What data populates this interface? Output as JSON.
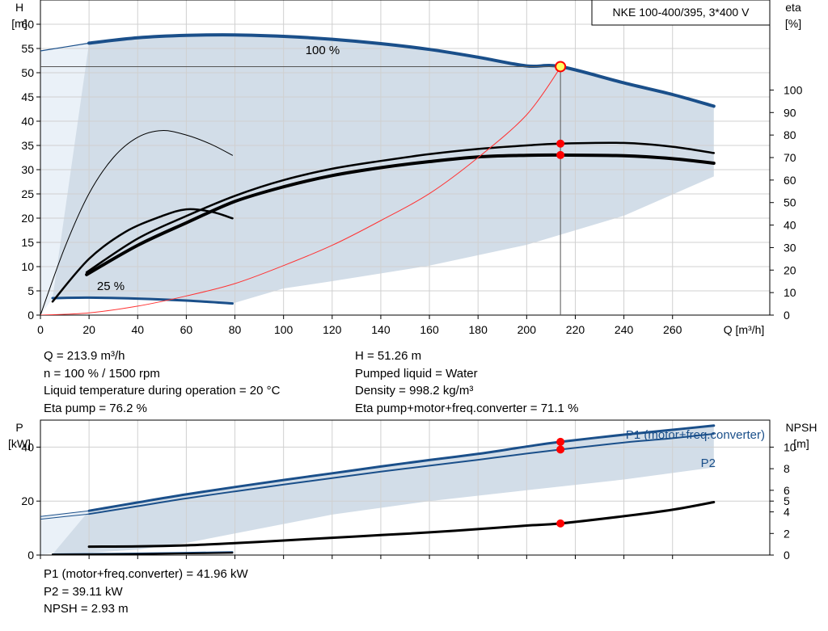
{
  "chart_data": [
    {
      "type": "line",
      "title": "NKE 100-400/395, 3*400 V",
      "xlabel": "Q [m³/h]",
      "ylabel": [
        "H",
        "[m]"
      ],
      "y2label": [
        "eta",
        "[%]"
      ],
      "xlim": [
        0,
        300
      ],
      "ylim": [
        0,
        65
      ],
      "y2lim": [
        0,
        140
      ],
      "x_ticks": [
        0,
        20,
        40,
        60,
        80,
        100,
        120,
        140,
        160,
        180,
        200,
        220,
        240,
        260
      ],
      "y_ticks": [
        0,
        5,
        10,
        15,
        20,
        25,
        30,
        35,
        40,
        45,
        50,
        55,
        60
      ],
      "y2_ticks": [
        0,
        10,
        20,
        30,
        40,
        50,
        60,
        70,
        80,
        90,
        100
      ],
      "grid": true,
      "curve_labels": [
        "100 %",
        "25 %"
      ],
      "operating_point": {
        "Q": 213.9,
        "H": 51.26
      },
      "series": [
        {
          "name": "100 %",
          "axis": "y",
          "color": "#1a4f8a",
          "width": 4,
          "x": [
            20,
            40,
            60,
            80,
            100,
            120,
            140,
            160,
            180,
            200,
            213.9,
            240,
            260,
            277
          ],
          "y": [
            56.1,
            57.2,
            57.7,
            57.8,
            57.5,
            56.9,
            56.0,
            54.8,
            53.2,
            51.4,
            51.26,
            47.9,
            45.5,
            43.1
          ]
        },
        {
          "name": "25 %",
          "axis": "y",
          "color": "#1a4f8a",
          "width": 3,
          "x": [
            5,
            20,
            40,
            60,
            79
          ],
          "y": [
            3.5,
            3.6,
            3.4,
            3.0,
            2.4
          ]
        },
        {
          "axis": "y",
          "color": "#1a4f8a",
          "width": 1.2,
          "x": [
            0,
            20
          ],
          "y": [
            54.5,
            56.1
          ]
        },
        {
          "axis": "y2",
          "color": "#000000",
          "width": 2.5,
          "x": [
            19,
            40,
            60,
            80,
            100,
            120,
            140,
            160,
            180,
            200,
            213.9,
            240,
            260,
            277
          ],
          "y": [
            19,
            34,
            44,
            53,
            60,
            65,
            68.5,
            71.5,
            73.8,
            75.4,
            76.2,
            76.5,
            74.8,
            72
          ]
        },
        {
          "axis": "y2",
          "color": "#000000",
          "width": 4,
          "x": [
            19,
            40,
            60,
            80,
            100,
            120,
            140,
            160,
            180,
            200,
            213.9,
            240,
            260,
            277
          ],
          "y": [
            18,
            31,
            41,
            50.5,
            57,
            62,
            65.5,
            68.2,
            70.3,
            71,
            71.1,
            70.8,
            69.5,
            67.5
          ]
        },
        {
          "axis": "y2",
          "color": "#000000",
          "width": 2.5,
          "x": [
            5,
            20,
            35,
            50,
            60,
            70,
            79
          ],
          "y": [
            6,
            25,
            37,
            44,
            47,
            46,
            43
          ]
        },
        {
          "axis": "y2",
          "color": "#000000",
          "width": 1,
          "x": [
            0,
            10,
            20,
            30,
            40,
            50,
            60,
            70,
            79
          ],
          "y": [
            0,
            30,
            54,
            70,
            79,
            82,
            80,
            76,
            71
          ]
        },
        {
          "axis": "y2",
          "color": "#ff3333",
          "width": 1,
          "x": [
            0,
            20,
            40,
            60,
            80,
            100,
            120,
            140,
            160,
            180,
            200,
            213.9
          ],
          "y": [
            0,
            1,
            4,
            8.5,
            14,
            22,
            31,
            42,
            54,
            70,
            89,
            110
          ]
        }
      ]
    },
    {
      "type": "line",
      "xlabel": "",
      "ylabel": [
        "P",
        "[kW]"
      ],
      "y2label": [
        "NPSH",
        "[m]"
      ],
      "xlim": [
        0,
        300
      ],
      "ylim": [
        0,
        50
      ],
      "y2lim": [
        0,
        12.5
      ],
      "x_ticks": [
        0,
        20,
        40,
        60,
        80,
        100,
        120,
        140,
        160,
        180,
        200,
        220,
        240,
        260
      ],
      "y_ticks": [
        0,
        20,
        40
      ],
      "y2_ticks": [
        0,
        2,
        4,
        5,
        6,
        8,
        10
      ],
      "grid": true,
      "curve_labels": [
        "P1 (motor+freq.converter)",
        "P2"
      ],
      "operating_point": {
        "Q": 213.9,
        "P1": 41.96,
        "P2": 39.11,
        "NPSH": 2.93
      },
      "series": [
        {
          "name": "P1 (motor+freq.converter)",
          "axis": "y",
          "color": "#1a4f8a",
          "width": 3,
          "x": [
            20,
            40,
            60,
            80,
            100,
            120,
            140,
            160,
            180,
            200,
            213.9,
            240,
            260,
            277
          ],
          "y": [
            16.4,
            19.5,
            22.5,
            25.2,
            27.8,
            30.3,
            32.8,
            35.2,
            37.5,
            40.2,
            41.96,
            44.6,
            46.4,
            48.0
          ]
        },
        {
          "name": "P2",
          "axis": "y",
          "color": "#1a4f8a",
          "width": 2,
          "x": [
            20,
            40,
            60,
            80,
            100,
            120,
            140,
            160,
            180,
            200,
            213.9,
            240,
            260,
            277
          ],
          "y": [
            15.2,
            18.1,
            21.0,
            23.6,
            26.1,
            28.5,
            30.9,
            33.1,
            35.3,
            37.6,
            39.11,
            41.7,
            43.3,
            44.9
          ]
        },
        {
          "axis": "y",
          "color": "#1a4f8a",
          "width": 1,
          "x": [
            0,
            20
          ],
          "y": [
            14.3,
            16.4
          ]
        },
        {
          "axis": "y",
          "color": "#1a4f8a",
          "width": 1,
          "x": [
            0,
            20
          ],
          "y": [
            13.3,
            15.2
          ]
        },
        {
          "axis": "y",
          "color": "#1a4f8a",
          "width": 2,
          "x": [
            5,
            40,
            79
          ],
          "y": [
            0.3,
            0.6,
            1.1
          ]
        },
        {
          "name": "NPSH",
          "axis": "y2",
          "color": "#000000",
          "width": 3,
          "x": [
            20,
            40,
            60,
            80,
            100,
            120,
            140,
            160,
            180,
            200,
            213.9,
            240,
            260,
            277
          ],
          "y": [
            0.78,
            0.8,
            0.9,
            1.1,
            1.35,
            1.6,
            1.85,
            2.1,
            2.4,
            2.73,
            2.93,
            3.6,
            4.2,
            4.9
          ]
        },
        {
          "axis": "y2",
          "color": "#000000",
          "width": 2,
          "x": [
            5,
            40,
            79
          ],
          "y": [
            0.05,
            0.1,
            0.2
          ]
        }
      ]
    }
  ],
  "info_top_left": [
    "Q = 213.9 m³/h",
    "n = 100 % / 1500 rpm",
    "Liquid temperature during operation = 20 °C",
    "Eta pump = 76.2 %"
  ],
  "info_top_right": [
    "H = 51.26 m",
    "Pumped liquid = Water",
    "Density = 998.2 kg/m³",
    "Eta pump+motor+freq.converter = 71.1 %"
  ],
  "info_bottom": [
    "P1 (motor+freq.converter) = 41.96 kW",
    "P2 = 39.11 kW",
    "NPSH = 2.93 m"
  ],
  "colors": {
    "envelope": "#d2dde8",
    "envelope_light": "#eaf1f8",
    "curve_blue": "#1a4f8a",
    "grid": "#d0d0d0",
    "point_red": "#ff0000",
    "point_yellow": "#ffff66"
  }
}
